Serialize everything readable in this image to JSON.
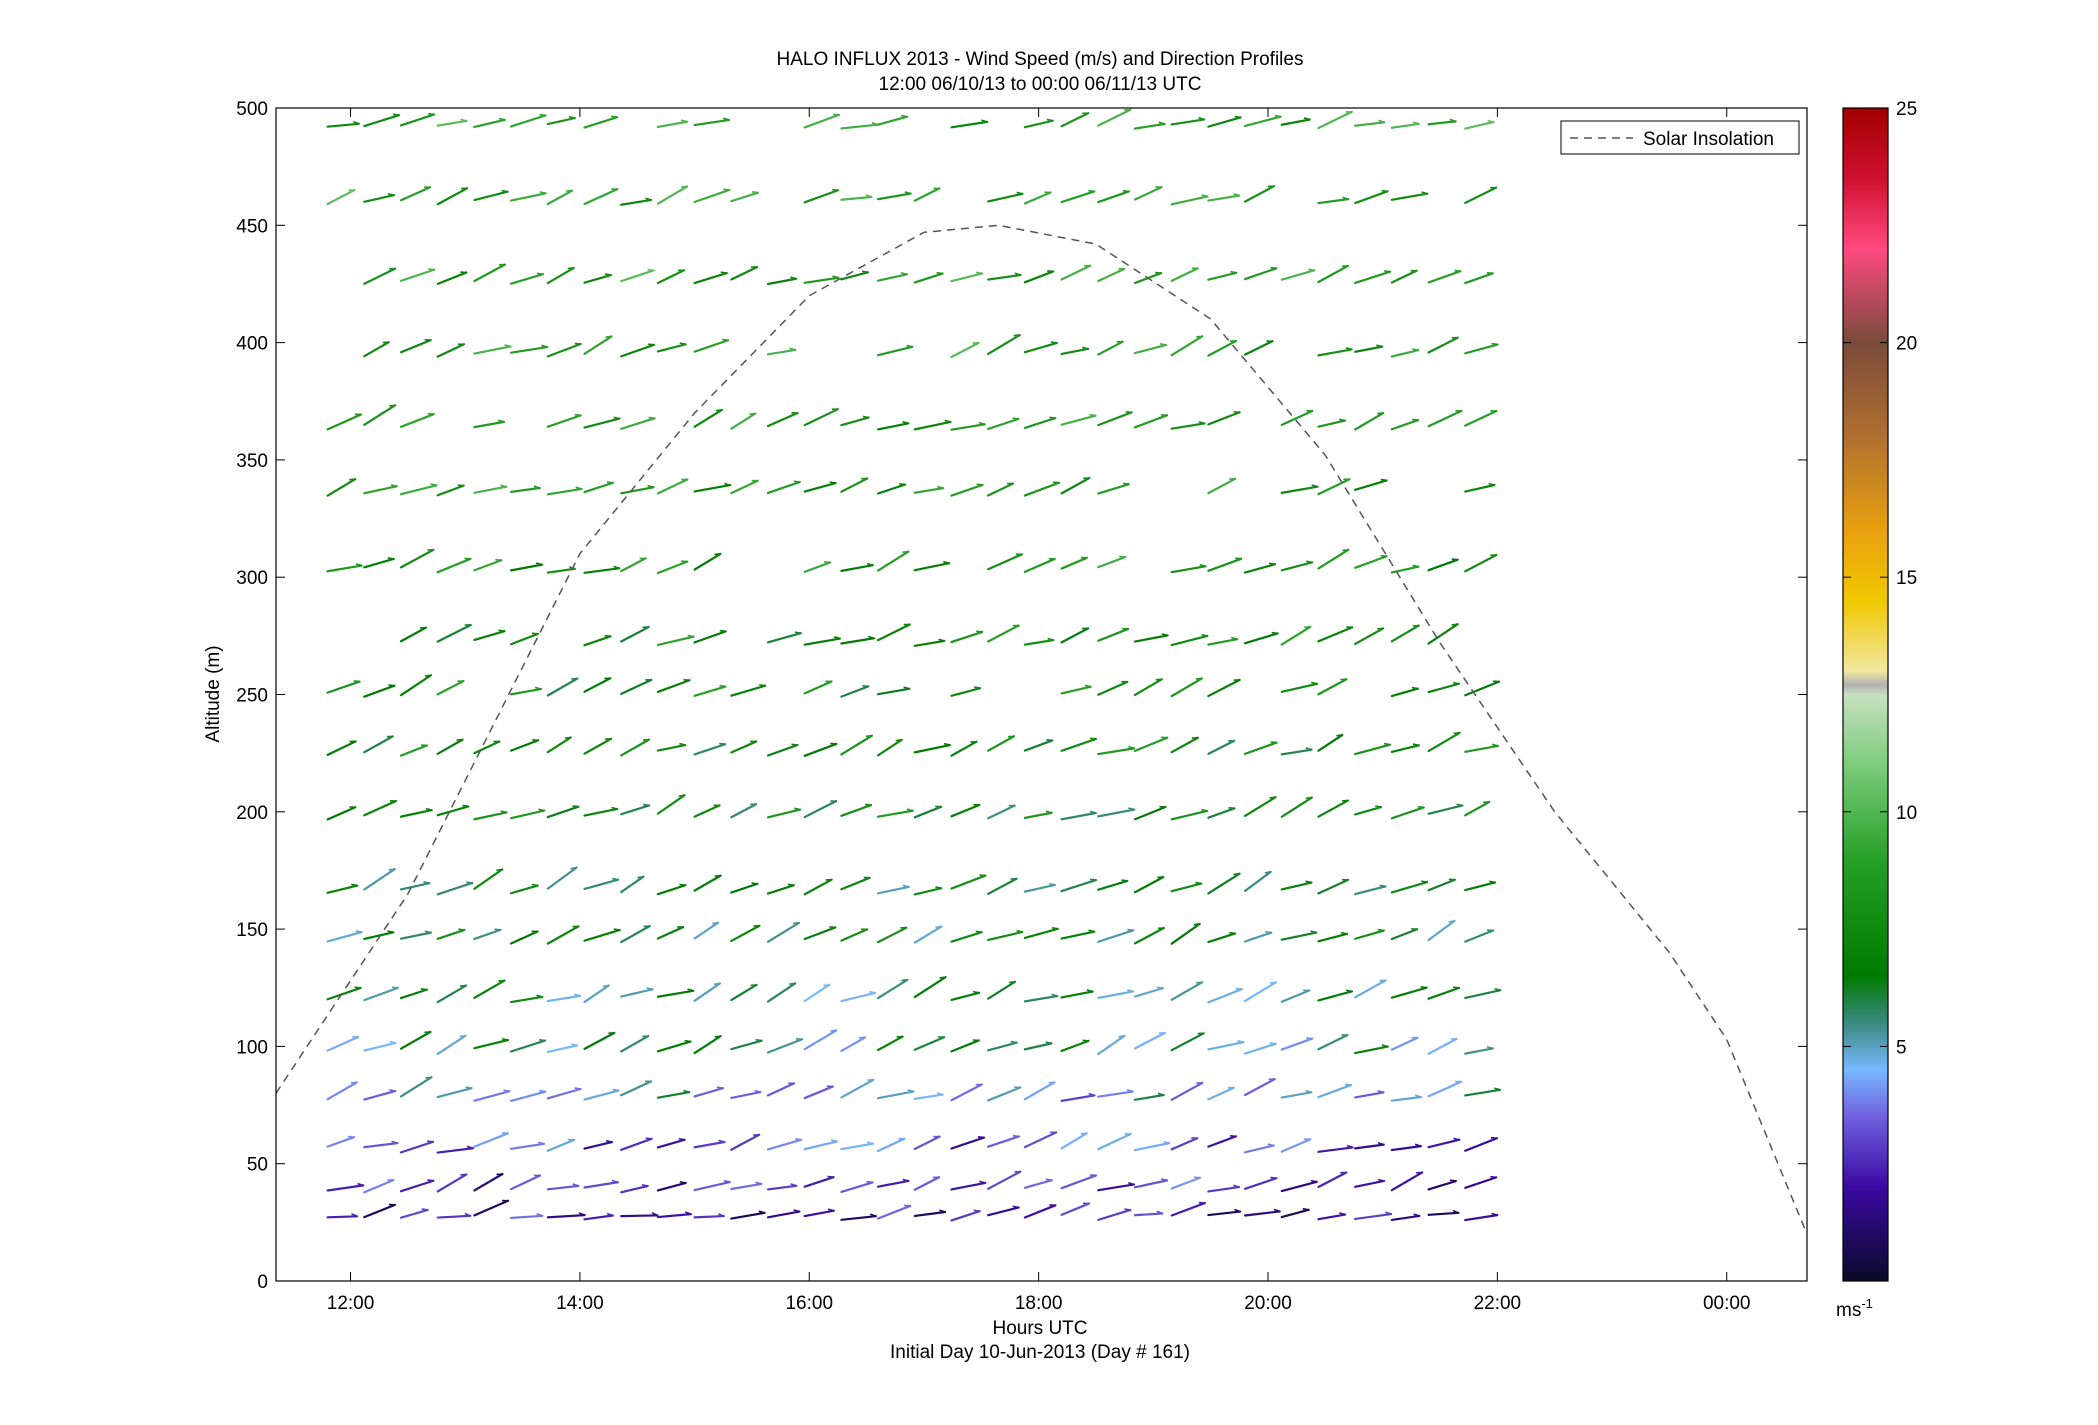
{
  "chart_data": {
    "type": "vector-field",
    "title": "HALO INFLUX 2013 - Wind Speed (m/s) and Direction Profiles",
    "subtitle": "12:00 06/10/13 to 00:00 06/11/13  UTC",
    "xlabel": "Hours UTC",
    "xlabel2": "Initial Day 10-Jun-2013 (Day # 161)",
    "ylabel": "Altitude (m)",
    "x_range_hours": [
      11.35,
      24.7
    ],
    "ylim": [
      0,
      500
    ],
    "x_ticks": [
      {
        "h": 12,
        "label": "12:00"
      },
      {
        "h": 14,
        "label": "14:00"
      },
      {
        "h": 16,
        "label": "16:00"
      },
      {
        "h": 18,
        "label": "18:00"
      },
      {
        "h": 20,
        "label": "20:00"
      },
      {
        "h": 22,
        "label": "22:00"
      },
      {
        "h": 24,
        "label": "00:00"
      }
    ],
    "y_ticks": [
      0,
      50,
      100,
      150,
      200,
      250,
      300,
      350,
      400,
      450,
      500
    ],
    "legend": {
      "label": "Solar Insolation",
      "position": "top-right"
    },
    "solar_insolation": {
      "color": "#555555",
      "points": [
        [
          11.35,
          80
        ],
        [
          12.5,
          165
        ],
        [
          14,
          310
        ],
        [
          15,
          370
        ],
        [
          16,
          420
        ],
        [
          17,
          447
        ],
        [
          17.65,
          450
        ],
        [
          18.5,
          442
        ],
        [
          19.5,
          410
        ],
        [
          20.5,
          352
        ],
        [
          21.5,
          272
        ],
        [
          22.5,
          200
        ],
        [
          23.5,
          140
        ],
        [
          24,
          103
        ],
        [
          24.7,
          20
        ]
      ]
    },
    "colorbar": {
      "min": 0,
      "max": 25,
      "ticks": [
        5,
        10,
        15,
        20,
        25
      ],
      "unit": "ms",
      "unit_exp": "-1",
      "stops": [
        {
          "v": 0,
          "c": "#0a0a2a"
        },
        {
          "v": 2,
          "c": "#3a0aa0"
        },
        {
          "v": 3.5,
          "c": "#7060e0"
        },
        {
          "v": 4.5,
          "c": "#78b8ff"
        },
        {
          "v": 5.5,
          "c": "#3a8a80"
        },
        {
          "v": 6.5,
          "c": "#007a00"
        },
        {
          "v": 9,
          "c": "#28a028"
        },
        {
          "v": 11,
          "c": "#7ccc7c"
        },
        {
          "v": 12.5,
          "c": "#c8e0c0"
        },
        {
          "v": 12.7,
          "c": "#b0b0b0"
        },
        {
          "v": 13,
          "c": "#f0e8a0"
        },
        {
          "v": 14.5,
          "c": "#f0c800"
        },
        {
          "v": 16,
          "c": "#e8a010"
        },
        {
          "v": 18,
          "c": "#b07030"
        },
        {
          "v": 20,
          "c": "#7a4a3a"
        },
        {
          "v": 22,
          "c": "#ff4a80"
        },
        {
          "v": 23.5,
          "c": "#d01030"
        },
        {
          "v": 25,
          "c": "#a00000"
        }
      ]
    },
    "vector_grid": {
      "start_hour": 11.8,
      "step_hour": 0.32,
      "count": 32,
      "levels": [
        {
          "alt": 27,
          "dir": 12,
          "speed": 2.2
        },
        {
          "alt": 39,
          "dir": 18,
          "speed": 2.6
        },
        {
          "alt": 56,
          "dir": 20,
          "speed": 3.4
        },
        {
          "alt": 78,
          "dir": 20,
          "speed": 4.6
        },
        {
          "alt": 98,
          "dir": 22,
          "speed": 5.6
        },
        {
          "alt": 120,
          "dir": 22,
          "speed": 6.0
        },
        {
          "alt": 145,
          "dir": 24,
          "speed": 6.4
        },
        {
          "alt": 166,
          "dir": 24,
          "speed": 6.6
        },
        {
          "alt": 198,
          "dir": 22,
          "speed": 7.0
        },
        {
          "alt": 225,
          "dir": 22,
          "speed": 7.2
        },
        {
          "alt": 250,
          "dir": 22,
          "speed": 7.4
        },
        {
          "alt": 272,
          "dir": 22,
          "speed": 7.6
        },
        {
          "alt": 303,
          "dir": 20,
          "speed": 8.0
        },
        {
          "alt": 336,
          "dir": 20,
          "speed": 8.2
        },
        {
          "alt": 364,
          "dir": 20,
          "speed": 8.4
        },
        {
          "alt": 395,
          "dir": 20,
          "speed": 8.6
        },
        {
          "alt": 426,
          "dir": 20,
          "speed": 8.6
        },
        {
          "alt": 460,
          "dir": 18,
          "speed": 8.8
        },
        {
          "alt": 492,
          "dir": 18,
          "speed": 8.8
        }
      ]
    }
  }
}
